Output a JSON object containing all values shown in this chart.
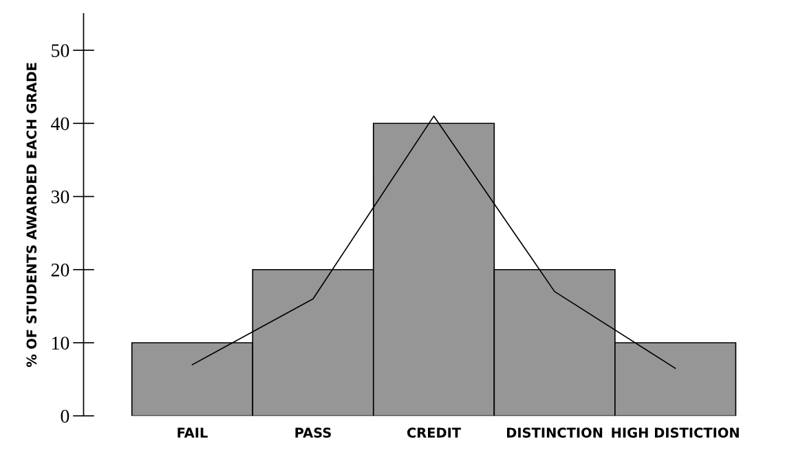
{
  "chart_data": {
    "type": "bar",
    "ylabel": "% OF STUDENTS AWARDED EACH GRADE",
    "categories": [
      "FAIL",
      "PASS",
      "CREDIT",
      "DISTINCTION",
      "HIGH DISTICTION"
    ],
    "series": [
      {
        "color": "#969696",
        "values": [
          10,
          20,
          40,
          20,
          10
        ]
      },
      {
        "type": "line",
        "color": "#000000",
        "values": [
          7,
          16,
          41,
          17,
          6.5
        ]
      }
    ],
    "ylim": [
      0,
      55
    ],
    "yticks": [
      0,
      10,
      20,
      30,
      40,
      50
    ],
    "grid": false,
    "legend": false,
    "marker": "none",
    "line_style": "solid"
  }
}
